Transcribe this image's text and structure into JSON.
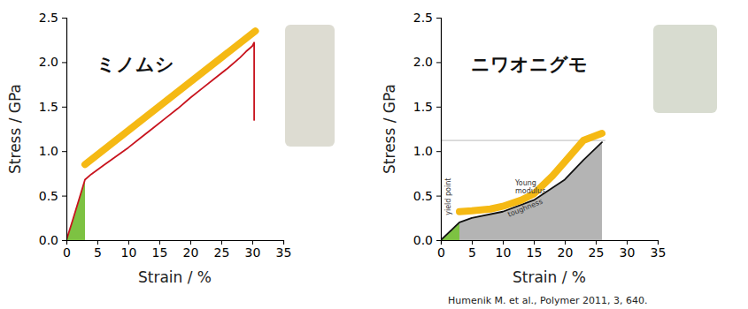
{
  "chart_data": [
    {
      "type": "line",
      "title": "ミノムシ",
      "x_label": "Strain / %",
      "y_label": "Stress / GPa",
      "xlim": [
        0,
        35
      ],
      "ylim": [
        0,
        2.5
      ],
      "xticks": [
        0,
        5,
        10,
        15,
        20,
        25,
        30,
        35
      ],
      "yticks": [
        {
          "value": 0,
          "label": "0.0"
        },
        {
          "value": 0.5,
          "label": "0.5"
        },
        {
          "value": 1,
          "label": "1.0"
        },
        {
          "value": 1.5,
          "label": "1.5"
        },
        {
          "value": 2,
          "label": "2.0"
        },
        {
          "value": 2.5,
          "label": "2.5"
        }
      ],
      "series": [
        {
          "type": "area",
          "color": "#7dc242",
          "x": [
            0,
            3
          ],
          "values": [
            0,
            0.68
          ]
        },
        {
          "type": "line",
          "color": "#f5b914",
          "line_style": "thick",
          "x": [
            3,
            30.5
          ],
          "values": [
            0.85,
            2.35
          ]
        },
        {
          "type": "line",
          "color": "#c8141e",
          "line_style": "solid",
          "x": [
            0,
            1,
            2,
            3,
            4,
            6,
            8,
            10,
            12,
            14,
            16,
            18,
            20,
            22,
            24,
            26,
            28,
            29,
            30,
            30.3,
            30.3
          ],
          "values": [
            0,
            0.22,
            0.45,
            0.68,
            0.74,
            0.84,
            0.94,
            1.04,
            1.15,
            1.26,
            1.37,
            1.48,
            1.6,
            1.71,
            1.82,
            1.93,
            2.05,
            2.12,
            2.18,
            2.22,
            1.35
          ]
        }
      ]
    },
    {
      "type": "line",
      "title": "ニワオニグモ",
      "x_label": "Strain / %",
      "y_label": "Stress / GPa",
      "xlim": [
        0,
        35
      ],
      "ylim": [
        0,
        2.5
      ],
      "xticks": [
        0,
        5,
        10,
        15,
        20,
        25,
        30,
        35
      ],
      "yticks": [
        {
          "value": 0,
          "label": "0.0"
        },
        {
          "value": 0.5,
          "label": "0.5"
        },
        {
          "value": 1,
          "label": "1.0"
        },
        {
          "value": 1.5,
          "label": "1.5"
        },
        {
          "value": 2,
          "label": "2.0"
        },
        {
          "value": 2.5,
          "label": "2.5"
        }
      ],
      "series": [
        {
          "type": "area",
          "color": "#b4b4b4",
          "x": [
            3,
            5,
            10,
            15,
            20,
            23,
            26
          ],
          "values": [
            0.2,
            0.25,
            0.32,
            0.45,
            0.68,
            0.9,
            1.1
          ]
        },
        {
          "type": "area",
          "color": "#7dc242",
          "x": [
            0,
            3
          ],
          "values": [
            0,
            0.2
          ]
        },
        {
          "type": "line",
          "color": "#aaaaaa",
          "line_style": "thin",
          "x": [
            0,
            26.5
          ],
          "values": [
            1.12,
            1.12
          ]
        },
        {
          "type": "line",
          "color": "#111111",
          "line_style": "solid",
          "x": [
            0,
            3,
            5,
            10,
            15,
            20,
            23,
            26
          ],
          "values": [
            0,
            0.2,
            0.25,
            0.32,
            0.45,
            0.68,
            0.9,
            1.1
          ]
        },
        {
          "type": "line",
          "color": "#f5b914",
          "line_style": "thick",
          "x": [
            3,
            5,
            8,
            10,
            13,
            15,
            18,
            20,
            23,
            26
          ],
          "values": [
            0.32,
            0.33,
            0.35,
            0.38,
            0.45,
            0.52,
            0.72,
            0.88,
            1.12,
            1.2
          ]
        }
      ],
      "annotations": [
        {
          "text": "Young modulus",
          "x": 12,
          "y": 0.62
        },
        {
          "text": "yield point",
          "x": 1.6,
          "y": 0.28
        },
        {
          "text": "toughness",
          "x": 11,
          "y": 0.26
        }
      ],
      "source": "Humenik M. et al., Polymer 2011, 3, 640."
    }
  ]
}
